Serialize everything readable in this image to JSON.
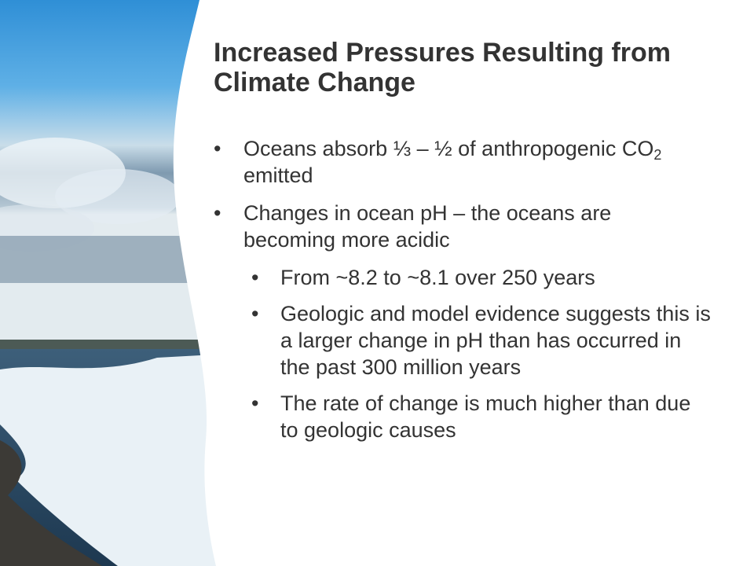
{
  "title": "Increased Pressures Resulting from Climate Change",
  "bullets": [
    {
      "parts": [
        "Oceans absorb ⅓ – ½ of anthropogenic CO",
        "2",
        " emitted"
      ]
    },
    {
      "text": "Changes in ocean pH – the oceans are becoming more acidic",
      "sub": [
        "From ~8.2 to ~8.1 over 250 years",
        "Geologic and model evidence suggests this is a larger change in pH than has occurred in the past 300 million years",
        "The rate of change is much higher than due to geologic causes"
      ]
    }
  ]
}
